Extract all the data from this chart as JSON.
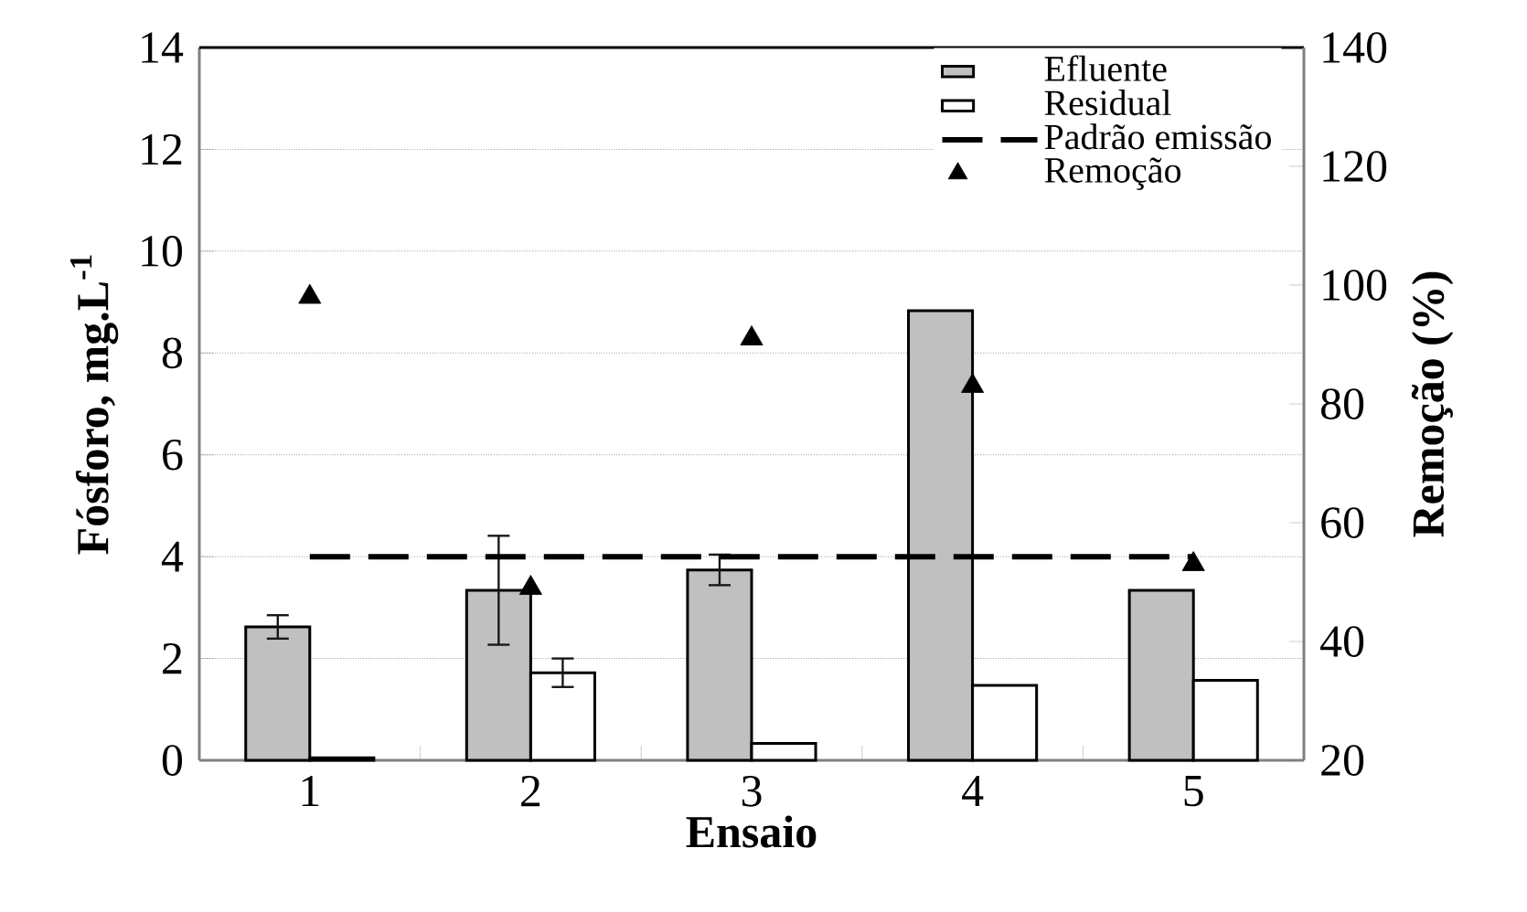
{
  "chart_data": {
    "type": "bar",
    "xlabel": "Ensaio",
    "ylabel": "Fósforo, mg.L$^{-1}$",
    "y2label": "Remoção (%)",
    "categories": [
      "1",
      "2",
      "3",
      "4",
      "5"
    ],
    "series": [
      {
        "name": "Efluente",
        "color": "#c0c0c0",
        "values": [
          2.62,
          3.34,
          3.74,
          8.83,
          3.34
        ],
        "errors": [
          0.23,
          1.07,
          0.3,
          null,
          null
        ]
      },
      {
        "name": "Residual",
        "color": "#ffffff",
        "values": [
          0.05,
          1.72,
          0.33,
          1.47,
          1.57
        ],
        "errors": [
          null,
          0.28,
          null,
          null,
          null
        ]
      },
      {
        "name": "Padrão emissão",
        "type": "line",
        "color": "#000000",
        "line_style": "dashed",
        "marker": "none",
        "values": [
          4,
          4,
          4,
          4,
          4
        ]
      },
      {
        "name": "Remoção",
        "type": "scatter",
        "axis": "y2",
        "color": "#000000",
        "marker": "triangle",
        "values": [
          98,
          49,
          91,
          83,
          53
        ]
      }
    ],
    "ylim": [
      0,
      14
    ],
    "yticks": [
      0,
      2,
      4,
      6,
      8,
      10,
      12,
      14
    ],
    "y2lim": [
      20,
      140
    ],
    "y2ticks": [
      20,
      40,
      60,
      80,
      100,
      120,
      140
    ],
    "grid": "y",
    "legend": "top right"
  }
}
